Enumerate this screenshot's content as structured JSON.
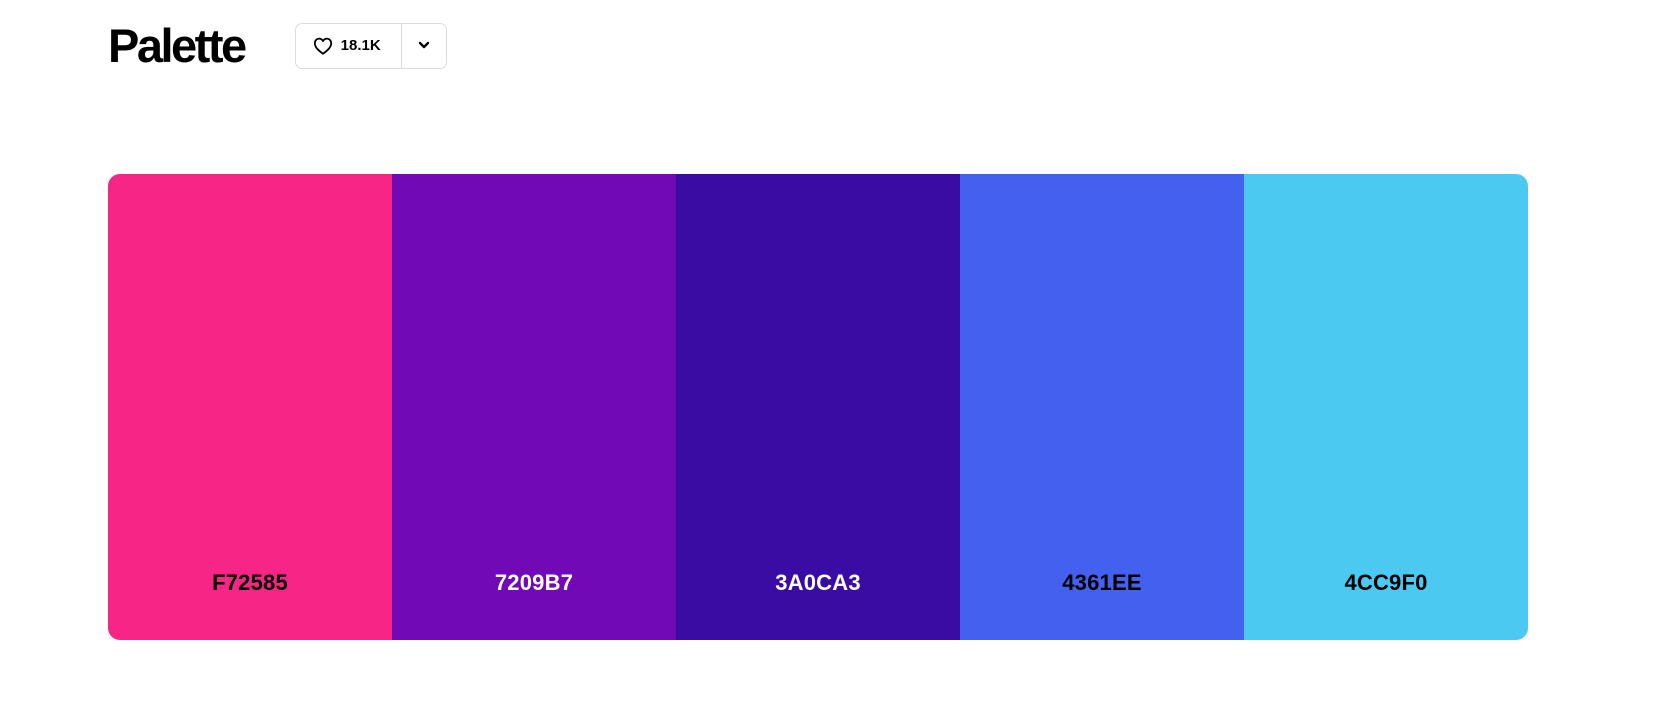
{
  "header": {
    "title": "Palette",
    "like_count": "18.1K",
    "like_icon": "heart-icon",
    "more_icon": "chevron-down-icon"
  },
  "palette": {
    "colors": [
      {
        "hex": "F72585",
        "bg": "#F72585",
        "text_color": "#000000"
      },
      {
        "hex": "7209B7",
        "bg": "#7209B7",
        "text_color": "#ffffff"
      },
      {
        "hex": "3A0CA3",
        "bg": "#3A0CA3",
        "text_color": "#ffffff"
      },
      {
        "hex": "4361EE",
        "bg": "#4361EE",
        "text_color": "#000000"
      },
      {
        "hex": "4CC9F0",
        "bg": "#4CC9F0",
        "text_color": "#000000"
      }
    ]
  }
}
